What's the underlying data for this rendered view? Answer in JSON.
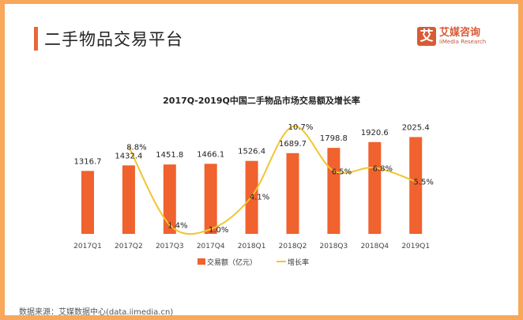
{
  "header": {
    "title": "二手物品交易平台",
    "logo_mark": "艾",
    "logo_cn": "艾媒咨询",
    "logo_en": "iiMedia Research"
  },
  "source": "数据来源：艾媒数据中心(data.iimedia.cn)",
  "colors": {
    "bar": "#f0622e",
    "line": "#f2c531",
    "border": "#f7a85a"
  },
  "chart_data": {
    "type": "bar+line",
    "title": "2017Q-2019Q中国二手物品市场交易额及增长率",
    "categories": [
      "2017Q1",
      "2017Q2",
      "2017Q3",
      "2017Q4",
      "2018Q1",
      "2018Q2",
      "2018Q3",
      "2018Q4",
      "2019Q1"
    ],
    "series": [
      {
        "name": "交易额（亿元）",
        "type": "bar",
        "values": [
          1316.7,
          1432.4,
          1451.8,
          1466.1,
          1526.4,
          1689.7,
          1798.8,
          1920.6,
          2025.4
        ],
        "labels": [
          "1316.7",
          "1432.4",
          "1451.8",
          "1466.1",
          "1526.4",
          "1689.7",
          "1798.8",
          "1920.6",
          "2025.4"
        ]
      },
      {
        "name": "增长率",
        "type": "line",
        "values": [
          null,
          8.8,
          1.4,
          1.0,
          4.1,
          10.7,
          6.5,
          6.8,
          5.5
        ],
        "labels": [
          "",
          "8.8%",
          "1.4%",
          "1.0%",
          "4.1%",
          "10.7%",
          "6.5%",
          "6.8%",
          "5.5%"
        ]
      }
    ],
    "legend": "bottom",
    "grid": false
  }
}
